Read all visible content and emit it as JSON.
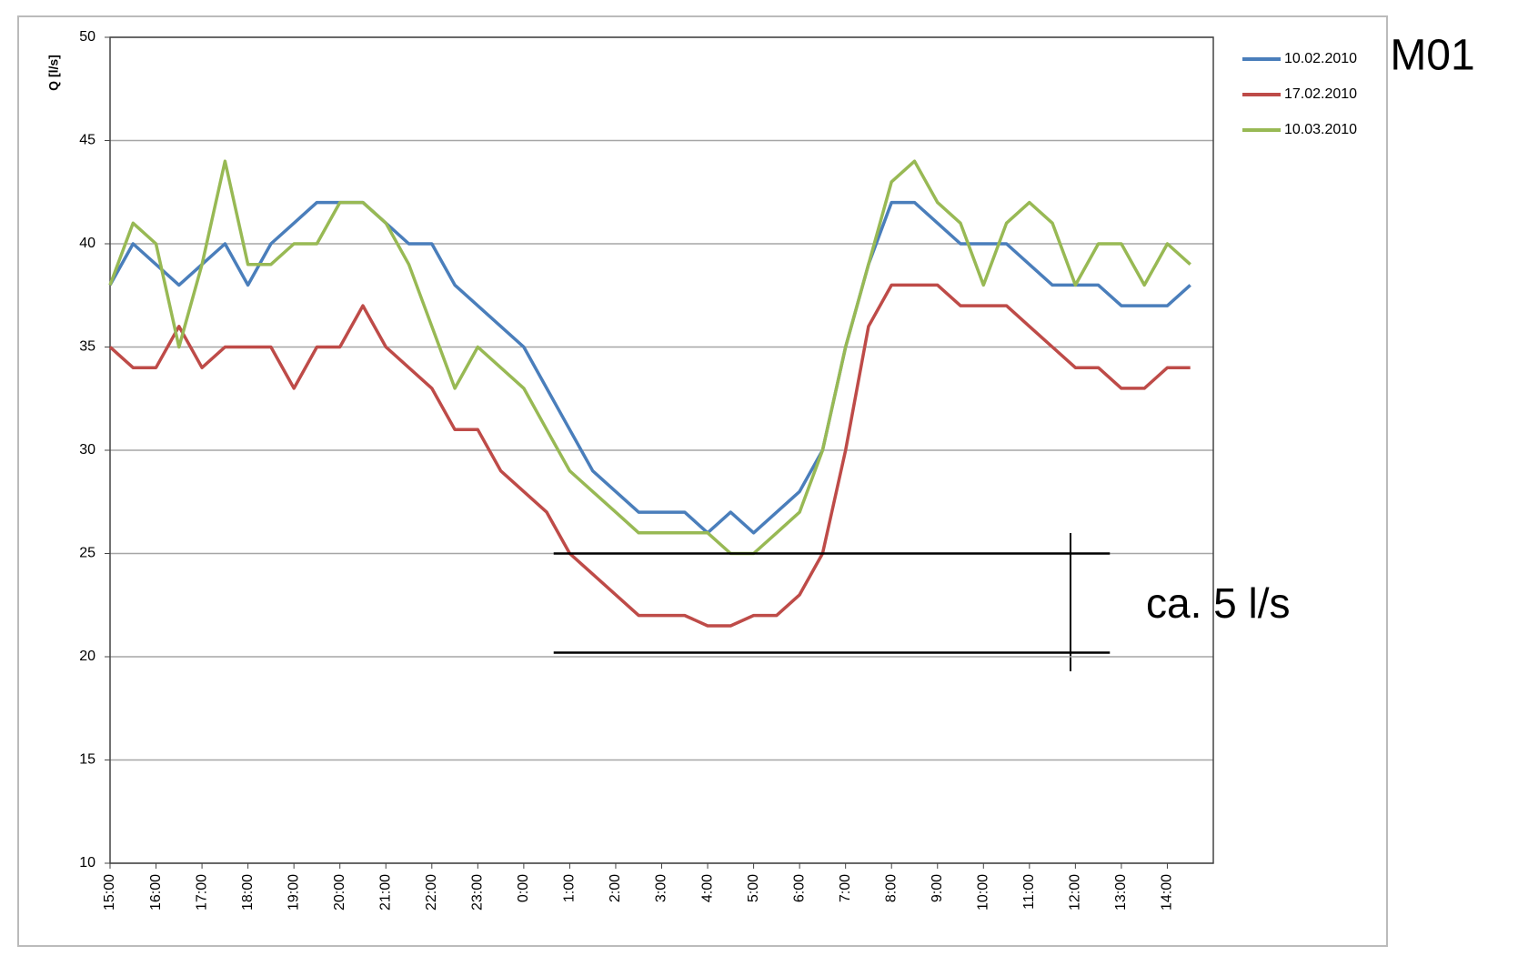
{
  "chart_data": {
    "type": "line",
    "title": "M01",
    "y_label": "Q [l/s]",
    "annotation": "ca. 5 l/s",
    "reference_lines": [
      25,
      20.2
    ],
    "categories": [
      "15:00",
      null,
      "16:00",
      null,
      "17:00",
      null,
      "18:00",
      null,
      "19:00",
      null,
      "20:00",
      null,
      "21:00",
      null,
      "22:00",
      null,
      "23:00",
      null,
      "0:00",
      null,
      "1:00",
      null,
      "2:00",
      null,
      "3:00",
      null,
      "4:00",
      null,
      "5:00",
      null,
      "6:00",
      null,
      "7:00",
      null,
      "8:00",
      null,
      "9:00",
      null,
      "10:00",
      null,
      "11:00",
      null,
      "12:00",
      null,
      "13:00",
      null,
      "14:00",
      null
    ],
    "series": [
      {
        "name": "10.02.2010",
        "color": "#4a7ebb",
        "values": [
          38,
          40,
          39,
          38,
          39,
          40,
          38,
          40,
          41,
          42,
          42,
          42,
          41,
          40,
          40,
          38,
          37,
          36,
          35,
          33,
          31,
          29,
          28,
          27,
          27,
          27,
          26,
          27,
          26,
          27,
          28,
          30,
          35,
          39,
          42,
          42,
          41,
          40,
          40,
          40,
          39,
          38,
          38,
          38,
          37,
          37,
          37,
          38
        ]
      },
      {
        "name": "17.02.2010",
        "color": "#be4b48",
        "values": [
          35,
          34,
          34,
          36,
          34,
          35,
          35,
          35,
          33,
          35,
          35,
          37,
          35,
          34,
          33,
          31,
          31,
          29,
          28,
          27,
          25,
          24,
          23,
          22,
          22,
          22,
          21.5,
          21.5,
          22,
          22,
          23,
          25,
          30,
          36,
          38,
          38,
          38,
          37,
          37,
          37,
          36,
          35,
          34,
          34,
          33,
          33,
          34,
          34
        ]
      },
      {
        "name": "10.03.2010",
        "color": "#98b954",
        "values": [
          38,
          41,
          40,
          35,
          39,
          44,
          39,
          39,
          40,
          40,
          42,
          42,
          41,
          39,
          36,
          33,
          35,
          34,
          33,
          31,
          29,
          28,
          27,
          26,
          26,
          26,
          26,
          25,
          25,
          26,
          27,
          30,
          35,
          39,
          43,
          44,
          42,
          41,
          38,
          41,
          42,
          41,
          38,
          40,
          40,
          38,
          40,
          39
        ]
      }
    ],
    "ylim": [
      10,
      50
    ],
    "yticks": [
      10,
      15,
      20,
      25,
      30,
      35,
      40,
      45,
      50
    ],
    "grid": true
  }
}
